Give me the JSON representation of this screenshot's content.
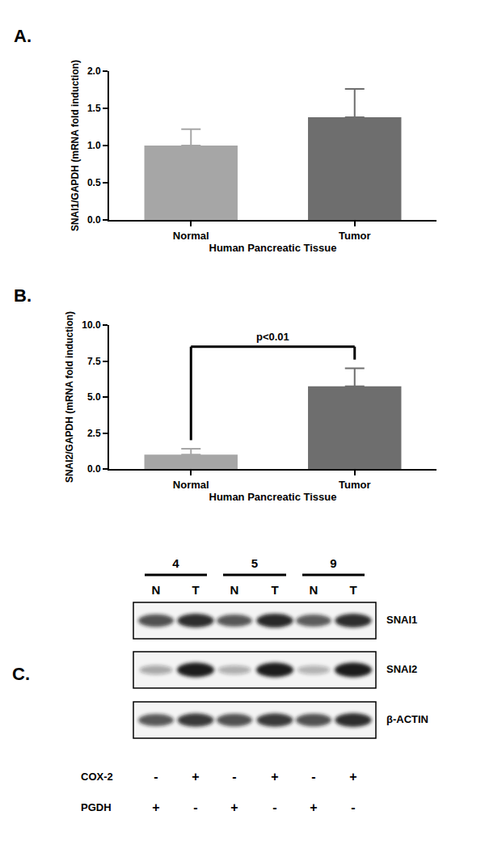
{
  "chart_data": [
    {
      "type": "bar",
      "title": "A.",
      "categories": [
        "Normal",
        "Tumor"
      ],
      "values": [
        1.0,
        1.38
      ],
      "errors": [
        0.22,
        0.38
      ],
      "colors": [
        "#a6a6a6",
        "#6e6e6e"
      ],
      "xlabel": "Human Pancreatic Tissue",
      "ylabel": "SNAI1/GAPDH (mRNA fold induction)",
      "ylim": [
        0,
        2
      ],
      "yticks": [
        {
          "value": 0,
          "label": "0.0"
        },
        0.5,
        {
          "value": 1,
          "label": "1.0"
        },
        1.5,
        {
          "value": 2,
          "label": "2.0"
        }
      ],
      "grid": false
    },
    {
      "type": "bar",
      "title": "B.",
      "categories": [
        "Normal",
        "Tumor"
      ],
      "values": [
        1.0,
        5.75
      ],
      "errors": [
        0.4,
        1.25
      ],
      "colors": [
        "#a6a6a6",
        "#6e6e6e"
      ],
      "xlabel": "Human Pancreatic Tissue",
      "ylabel": "SNAI2/GAPDH (mRNA fold induction)",
      "ylim": [
        0,
        10
      ],
      "yticks": [
        {
          "value": 0,
          "label": "0.0"
        },
        2.5,
        {
          "value": 5,
          "label": "5.0"
        },
        7.5,
        {
          "value": 10,
          "label": "10.0"
        }
      ],
      "annotations": [
        "p<0.01"
      ],
      "grid": false
    }
  ],
  "blot": {
    "title": "C.",
    "samples": [
      "4",
      "5",
      "9"
    ],
    "lanes": [
      "N",
      "T",
      "N",
      "T",
      "N",
      "T"
    ],
    "bands": [
      {
        "name": "SNAI1",
        "intensity": [
          0.75,
          0.9,
          0.72,
          0.92,
          0.7,
          0.9
        ]
      },
      {
        "name": "SNAI2",
        "intensity": [
          0.35,
          1.0,
          0.32,
          1.0,
          0.3,
          1.0
        ]
      },
      {
        "name": "β-ACTIN",
        "intensity": [
          0.72,
          0.85,
          0.75,
          0.85,
          0.75,
          0.9
        ]
      }
    ],
    "rows": [
      {
        "name": "COX-2",
        "signs": [
          "-",
          "+",
          "-",
          "+",
          "-",
          "+"
        ]
      },
      {
        "name": "PGDH",
        "signs": [
          "+",
          "-",
          "+",
          "-",
          "+",
          "-"
        ]
      }
    ]
  }
}
